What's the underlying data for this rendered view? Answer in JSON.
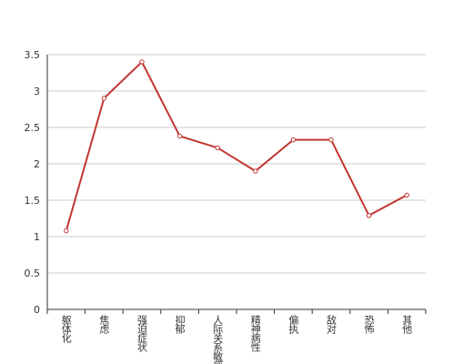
{
  "chart_data": {
    "type": "line",
    "categories": [
      "躯体化",
      "焦虑",
      "强迫症状",
      "抑郁",
      "人际关系敏感",
      "精神病性",
      "偏执",
      "敌对",
      "恐怖",
      "其他"
    ],
    "values": [
      1.08,
      2.9,
      3.4,
      2.38,
      2.22,
      1.9,
      2.33,
      2.33,
      1.29,
      1.57
    ],
    "color": "#c23531",
    "ylim": [
      0,
      3.5
    ],
    "yticks": [
      0,
      0.5,
      1,
      1.5,
      2,
      2.5,
      3,
      3.5
    ],
    "grid": true
  }
}
